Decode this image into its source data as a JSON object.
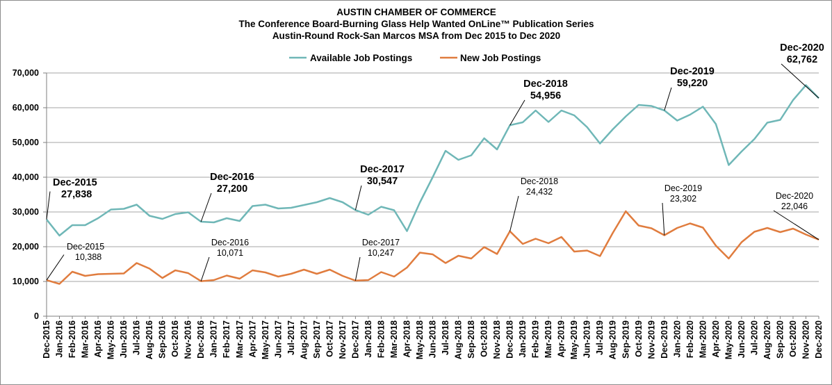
{
  "chart_data": {
    "type": "line",
    "title": "AUSTIN CHAMBER OF COMMERCE",
    "subtitle": [
      "The Conference Board-Burning Glass Help Wanted OnLine™ Publication Series",
      "Austin-Round Rock-San Marcos MSA from Dec 2015 to Dec 2020"
    ],
    "xlabel": "",
    "ylabel": "",
    "ylim": [
      0,
      70000
    ],
    "yticks": [
      "0",
      "10,000",
      "20,000",
      "30,000",
      "40,000",
      "50,000",
      "60,000",
      "70,000"
    ],
    "grid": "horizontal",
    "legend_position": "top",
    "categories": [
      "Dec-2015",
      "Jan-2016",
      "Feb-2016",
      "Mar-2016",
      "Apr-2016",
      "May-2016",
      "Jun-2016",
      "Jul-2016",
      "Aug-2016",
      "Sep-2016",
      "Oct-2016",
      "Nov-2016",
      "Dec-2016",
      "Jan-2017",
      "Feb-2017",
      "Mar-2017",
      "Apr-2017",
      "May-2017",
      "Jun-2017",
      "Jul-2017",
      "Aug-2017",
      "Sep-2017",
      "Oct-2017",
      "Nov-2017",
      "Dec-2017",
      "Jan-2018",
      "Feb-2018",
      "Mar-2018",
      "Apr-2018",
      "May-2018",
      "Jun-2018",
      "Jul-2018",
      "Aug-2018",
      "Sep-2018",
      "Oct-2018",
      "Nov-2018",
      "Dec-2018",
      "Jan-2019",
      "Feb-2019",
      "Mar-2019",
      "Apr-2019",
      "May-2019",
      "Jun-2019",
      "Jul-2019",
      "Aug-2019",
      "Sep-2019",
      "Oct-2019",
      "Nov-2019",
      "Dec-2019",
      "Jan-2020",
      "Feb-2020",
      "Mar-2020",
      "Apr-2020",
      "May-2020",
      "Jun-2020",
      "Jul-2020",
      "Aug-2020",
      "Sep-2020",
      "Oct-2020",
      "Nov-2020",
      "Dec-2020"
    ],
    "series": [
      {
        "name": "Available Job Postings",
        "color": "#6fb7b7",
        "values": [
          27838,
          23200,
          26200,
          26200,
          28200,
          30700,
          30900,
          32100,
          28900,
          28000,
          29400,
          29900,
          27200,
          27000,
          28200,
          27400,
          31700,
          32100,
          31000,
          31200,
          32000,
          32800,
          34000,
          32800,
          30547,
          29200,
          31500,
          30500,
          24500,
          32700,
          40000,
          47600,
          45000,
          46300,
          51200,
          48000,
          54956,
          55800,
          59200,
          55900,
          59200,
          57800,
          54400,
          49700,
          53800,
          57500,
          60800,
          60500,
          59220,
          56300,
          58000,
          60300,
          55300,
          43500,
          47400,
          51000,
          55700,
          56500,
          62200,
          66500,
          62762
        ]
      },
      {
        "name": "New Job Postings",
        "color": "#e07c3e",
        "values": [
          10388,
          9300,
          12800,
          11600,
          12100,
          12200,
          12300,
          15300,
          13700,
          11000,
          13200,
          12400,
          10071,
          10400,
          11700,
          10800,
          13200,
          12600,
          11400,
          12200,
          13400,
          12200,
          13400,
          11600,
          10247,
          10400,
          12700,
          11400,
          14000,
          18300,
          17800,
          15300,
          17400,
          16600,
          19900,
          17900,
          24432,
          20800,
          22300,
          21000,
          22800,
          18600,
          18900,
          17300,
          24000,
          30200,
          26100,
          25300,
          23302,
          25400,
          26700,
          25500,
          20300,
          16600,
          21300,
          24300,
          25400,
          24200,
          25200,
          23500,
          22046
        ]
      }
    ],
    "annotations": [
      {
        "series": 0,
        "index": 0,
        "date": "Dec-2015",
        "value": "27,838"
      },
      {
        "series": 0,
        "index": 12,
        "date": "Dec-2016",
        "value": "27,200"
      },
      {
        "series": 0,
        "index": 24,
        "date": "Dec-2017",
        "value": "30,547"
      },
      {
        "series": 0,
        "index": 36,
        "date": "Dec-2018",
        "value": "54,956"
      },
      {
        "series": 0,
        "index": 48,
        "date": "Dec-2019",
        "value": "59,220"
      },
      {
        "series": 0,
        "index": 60,
        "date": "Dec-2020",
        "value": "62,762"
      },
      {
        "series": 1,
        "index": 0,
        "date": "Dec-2015",
        "value": "10,388"
      },
      {
        "series": 1,
        "index": 12,
        "date": "Dec-2016",
        "value": "10,071"
      },
      {
        "series": 1,
        "index": 24,
        "date": "Dec-2017",
        "value": "10,247"
      },
      {
        "series": 1,
        "index": 36,
        "date": "Dec-2018",
        "value": "24,432"
      },
      {
        "series": 1,
        "index": 48,
        "date": "Dec-2019",
        "value": "23,302"
      },
      {
        "series": 1,
        "index": 60,
        "date": "Dec-2020",
        "value": "22,046"
      }
    ]
  }
}
